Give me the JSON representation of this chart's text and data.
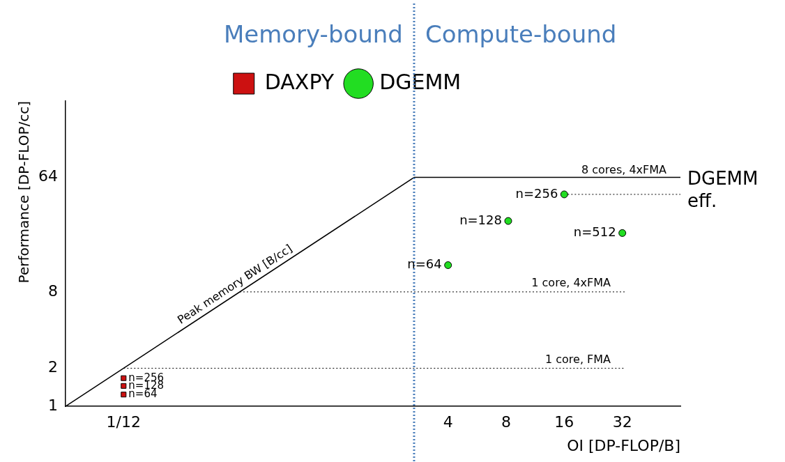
{
  "chart_data": {
    "type": "scatter",
    "xlabel": "OI [DP-FLOP/B]",
    "ylabel": "Performance [DP-FLOP/cc]",
    "log": "xy",
    "xlim": [
      0.04167,
      64
    ],
    "ylim": [
      1,
      256
    ],
    "xticks": [
      {
        "value": 0.08333,
        "label": "1/12"
      },
      4,
      8,
      16,
      32
    ],
    "yticks": [
      1,
      2,
      8,
      64
    ],
    "grid": false,
    "legend": "top",
    "series": [
      {
        "name": "DAXPY",
        "marker": "square",
        "color": "#cc1111",
        "x": [
          0.08333,
          0.08333,
          0.08333
        ],
        "values": [
          1.67,
          1.45,
          1.24
        ]
      },
      {
        "name": "DGEMM",
        "marker": "circle",
        "color": "#22dd22",
        "x": [
          4,
          8.2,
          16,
          32
        ],
        "values": [
          13,
          29,
          47,
          23.3
        ]
      },
      {
        "type": "line",
        "marker": "none",
        "line_style": "solid",
        "color": "#000000",
        "x": [
          0.04167,
          2.667,
          64
        ],
        "values": [
          1,
          64,
          64
        ]
      },
      {
        "type": "line",
        "marker": "none",
        "line_style": "dotted",
        "color": "#000000",
        "x": [
          16,
          64
        ],
        "values": [
          47,
          47
        ]
      }
    ],
    "ref_lines": [
      {
        "axis": "y",
        "value": 8,
        "label": "1 core, 4xFMA",
        "line_style": "dotted",
        "color": "#000000"
      },
      {
        "axis": "y",
        "value": 2,
        "label": "1 core, FMA",
        "line_style": "dotted",
        "color": "#000000"
      },
      {
        "axis": "x",
        "value": 2.667,
        "label": null,
        "line_style": "dotted",
        "color": "#4a7ebb"
      }
    ],
    "annotations": [
      "Memory-bound",
      "Compute-bound",
      {
        "text": "n=256",
        "x": 0.08333,
        "y": 1.67
      },
      {
        "text": "n=128",
        "x": 0.08333,
        "y": 1.45
      },
      {
        "text": "n=64",
        "x": 0.08333,
        "y": 1.24
      },
      {
        "text": "n=64",
        "x": 4,
        "y": 13
      },
      {
        "text": "n=128",
        "x": 8.2,
        "y": 29
      },
      {
        "text": "n=256",
        "x": 16,
        "y": 47
      },
      {
        "text": "n=512",
        "x": 32,
        "y": 23.3
      },
      {
        "text": "8 cores, 4xFMA",
        "x": 64,
        "y": 64
      },
      "DGEMM eff.",
      "Peak memory BW [B/cc]"
    ]
  }
}
